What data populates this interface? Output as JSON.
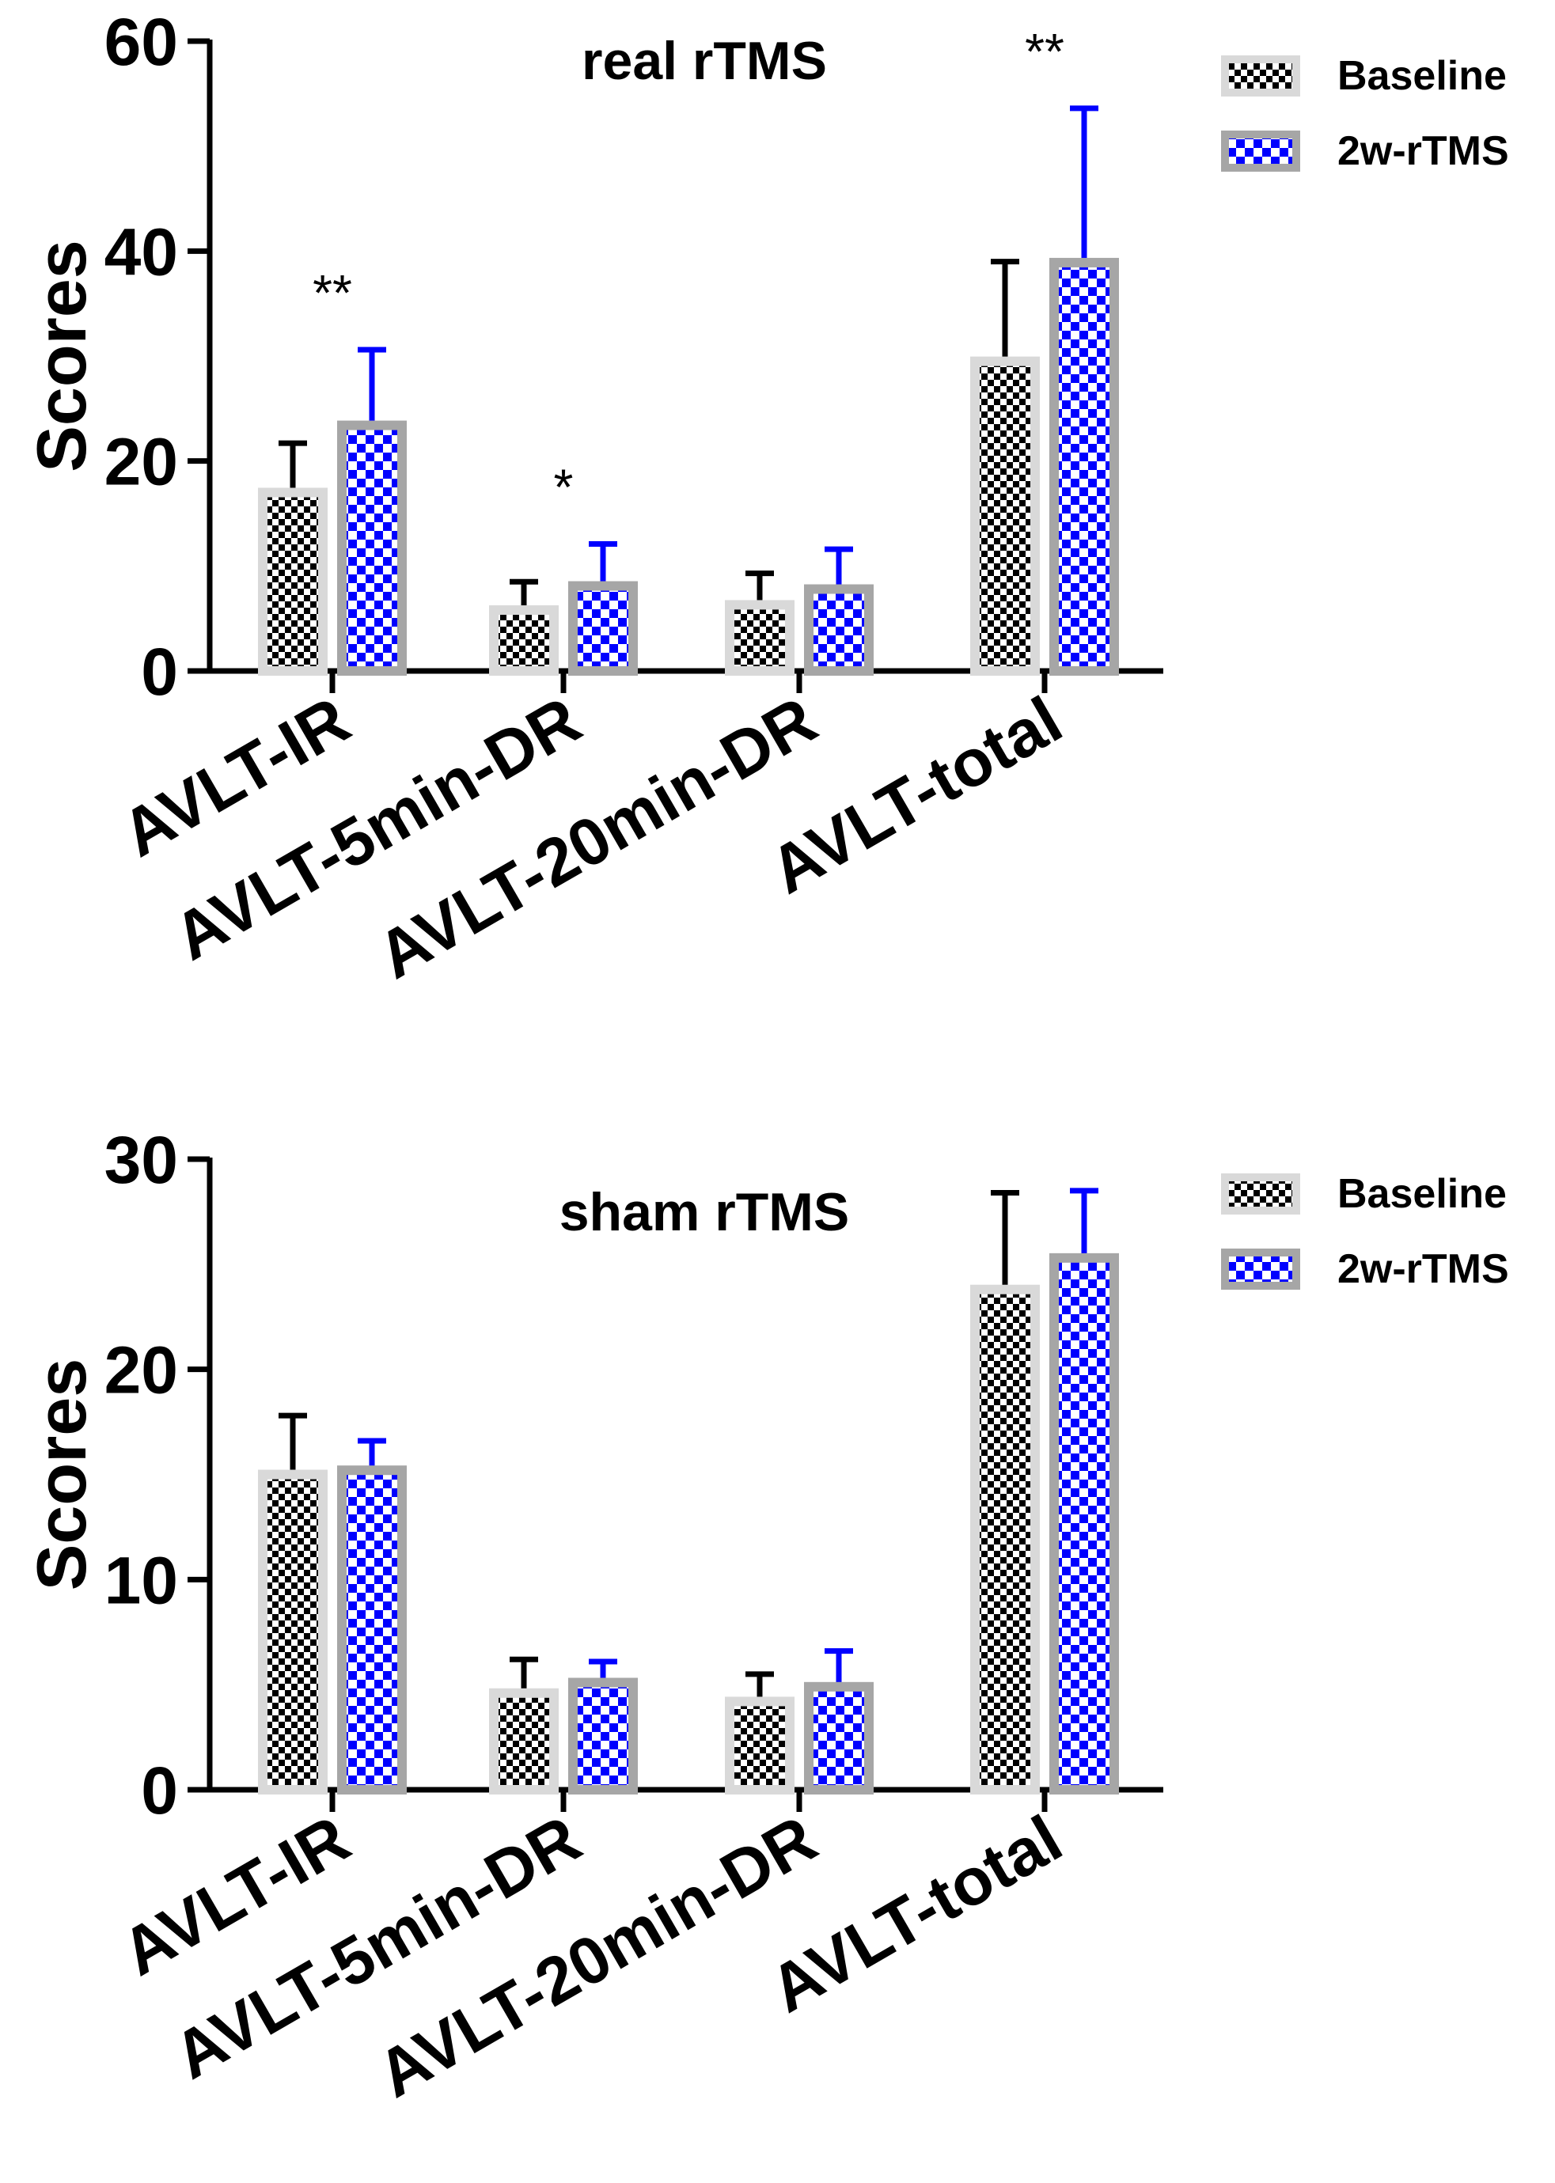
{
  "chart_data": [
    {
      "type": "bar",
      "title": "real rTMS",
      "ylabel": "Scores",
      "xlabel": "",
      "ylim": [
        0,
        60
      ],
      "yticks": [
        0,
        20,
        40,
        60
      ],
      "categories": [
        "AVLT-IR",
        "AVLT-5min-DR",
        "AVLT-20min-DR",
        "AVLT-total"
      ],
      "series": [
        {
          "name": "Baseline",
          "values": [
            17.0,
            5.8,
            6.3,
            29.5
          ],
          "errors": [
            4.7,
            2.7,
            3.0,
            9.5
          ],
          "color": "#d9d9d9",
          "pattern_color": "#000000"
        },
        {
          "name": "2w-rTMS",
          "values": [
            23.4,
            8.1,
            7.8,
            38.9
          ],
          "errors": [
            7.2,
            4.0,
            3.8,
            14.7
          ],
          "color": "#a6a6a6",
          "pattern_color": "#0000ff"
        }
      ],
      "significance": [
        "**",
        "*",
        "",
        "**"
      ],
      "legend_position": "top-right"
    },
    {
      "type": "bar",
      "title": "sham rTMS",
      "ylabel": "Scores",
      "xlabel": "",
      "ylim": [
        0,
        30
      ],
      "yticks": [
        0,
        10,
        20,
        30
      ],
      "categories": [
        "AVLT-IR",
        "AVLT-5min-DR",
        "AVLT-20min-DR",
        "AVLT-total"
      ],
      "series": [
        {
          "name": "Baseline",
          "values": [
            15.0,
            4.6,
            4.2,
            23.8
          ],
          "errors": [
            2.8,
            1.6,
            1.3,
            4.6
          ],
          "color": "#d9d9d9",
          "pattern_color": "#000000"
        },
        {
          "name": "2w-rTMS",
          "values": [
            15.2,
            5.1,
            4.9,
            25.3
          ],
          "errors": [
            1.4,
            1.0,
            1.7,
            3.2
          ],
          "color": "#a6a6a6",
          "pattern_color": "#0000ff"
        }
      ],
      "significance": [
        "",
        "",
        "",
        ""
      ],
      "legend_position": "top-right"
    }
  ]
}
